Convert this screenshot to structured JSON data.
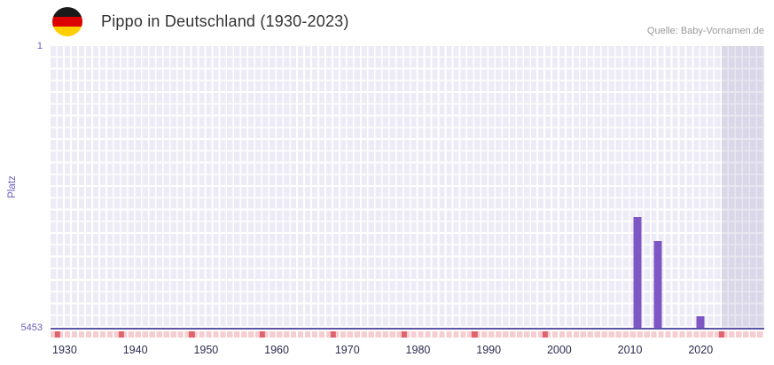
{
  "header": {
    "title": "Pippo in Deutschland (1930-2023)",
    "source": "Quelle: Baby-Vornamen.de",
    "flag_icon": "german-flag-icon",
    "flag_colors": [
      "#1a1a1a",
      "#dd0000",
      "#ffce00"
    ]
  },
  "y_axis": {
    "label": "Platz",
    "top_tick": "1",
    "bottom_tick": "5453"
  },
  "chart_data": {
    "type": "bar",
    "title": "Pippo in Deutschland (1930-2023)",
    "xlabel": "",
    "ylabel": "Platz",
    "y_range": [
      1,
      5453
    ],
    "y_inverted": true,
    "grid": true,
    "legend": "none",
    "x_ticks": [
      1930,
      1940,
      1950,
      1960,
      1970,
      1980,
      1990,
      2000,
      2010,
      2020
    ],
    "x_render_range": [
      1928,
      2029
    ],
    "bars": [
      {
        "year": 2011,
        "rank": 3310
      },
      {
        "year": 2014,
        "rank": 3770
      },
      {
        "year": 2020,
        "rank": 5230
      }
    ],
    "unranked_years_marked": [
      1929,
      1938,
      1948,
      1958,
      1968,
      1978,
      1988,
      1998,
      2023
    ],
    "right_band_from_year": 2023,
    "colors": {
      "bar": "#7e57c4",
      "baseline": "#5c55a8",
      "plot_background": "#edecf6",
      "right_band": "rgba(130,122,170,0.18)",
      "marker_dark": "#e0646c",
      "marker_light": "#f6cdd1",
      "y_tick_color": "#6d5bbd",
      "x_tick_color": "#2c2c51",
      "title_color": "#333333",
      "source_color": "#9a9a9a"
    }
  }
}
